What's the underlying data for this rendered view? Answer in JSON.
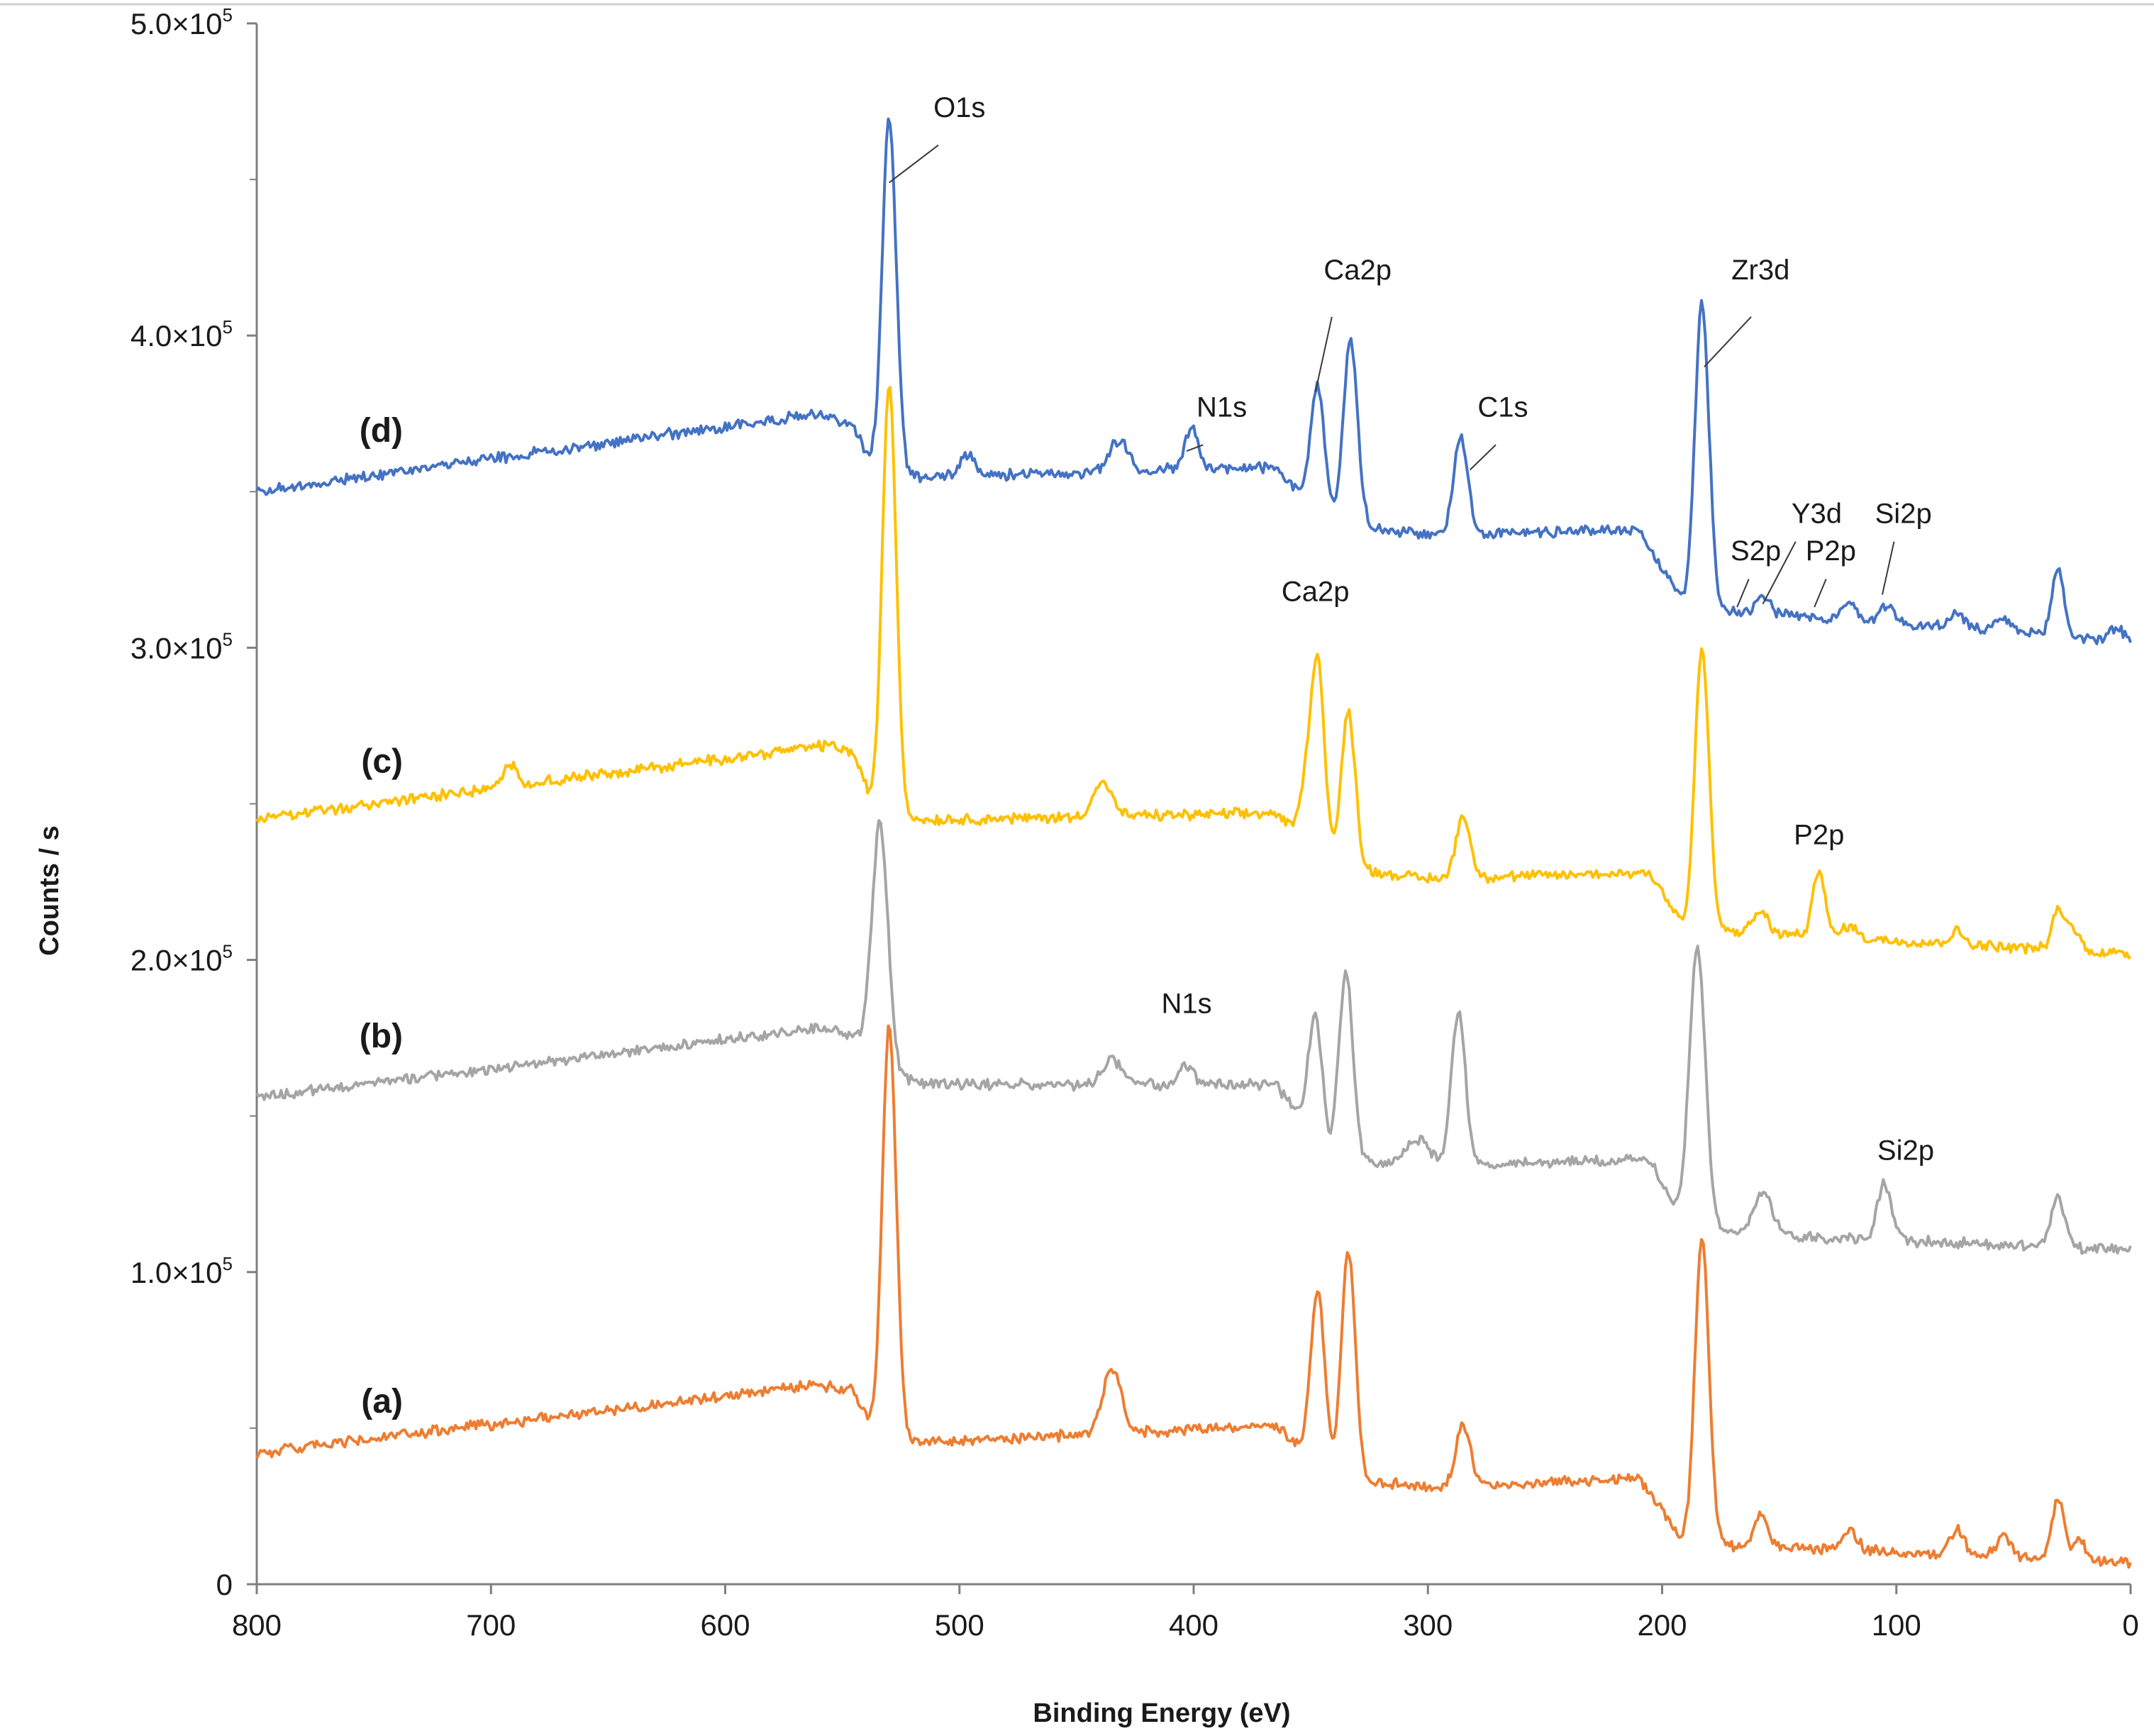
{
  "chart_data": {
    "type": "line",
    "title": "",
    "xlabel": "Binding Energy (eV)",
    "ylabel": "Counts / s",
    "xlim": [
      800,
      0
    ],
    "ylim": [
      0,
      500000
    ],
    "x_ticks": [
      800,
      700,
      600,
      500,
      400,
      300,
      200,
      100,
      0
    ],
    "x_tick_labels": [
      "800",
      "700",
      "600",
      "500",
      "400",
      "300",
      "200",
      "100",
      "0"
    ],
    "y_tick_labels": [
      {
        "mantissa": "0",
        "exp": "",
        "value": 0
      },
      {
        "mantissa": "1.0×10",
        "exp": "5",
        "value": 100000
      },
      {
        "mantissa": "2.0×10",
        "exp": "5",
        "value": 200000
      },
      {
        "mantissa": "3.0×10",
        "exp": "5",
        "value": 300000
      },
      {
        "mantissa": "4.0×10",
        "exp": "5",
        "value": 400000
      },
      {
        "mantissa": "5.0×10",
        "exp": "5",
        "value": 500000
      }
    ],
    "grid": false,
    "series": [
      {
        "name": "(a)",
        "color": "#ED7D31",
        "label_x": 780,
        "label_y": 55000,
        "baseline": [
          [
            800,
            42000
          ],
          [
            560,
            64000
          ],
          [
            545,
            62000
          ],
          [
            535,
            46000
          ],
          [
            500,
            46000
          ],
          [
            365,
            51000
          ],
          [
            340,
            34000
          ],
          [
            300,
            31000
          ],
          [
            210,
            34000
          ],
          [
            190,
            13000
          ],
          [
            0,
            7000
          ]
        ],
        "peaks": [
          [
            530,
            133000,
            3
          ],
          [
            435,
            20000,
            4
          ],
          [
            347,
            55000,
            3
          ],
          [
            334,
            73000,
            3
          ],
          [
            285,
            20000,
            3
          ],
          [
            183,
            98000,
            3
          ],
          [
            158,
            10000,
            3
          ],
          [
            120,
            7000,
            3
          ],
          [
            74,
            8000,
            3
          ],
          [
            54,
            7000,
            3
          ],
          [
            31,
            20000,
            2.5
          ],
          [
            22,
            6000,
            3
          ]
        ]
      },
      {
        "name": "(b)",
        "color": "#A5A5A5",
        "label_x": 780,
        "label_y": 172000,
        "baseline": [
          [
            800,
            156000
          ],
          [
            560,
            178000
          ],
          [
            545,
            176000
          ],
          [
            536,
            162000
          ],
          [
            500,
            160000
          ],
          [
            365,
            160000
          ],
          [
            342,
            136000
          ],
          [
            300,
            134000
          ],
          [
            205,
            136000
          ],
          [
            190,
            113000
          ],
          [
            0,
            107000
          ]
        ],
        "peaks": [
          [
            534,
            82000,
            3.5
          ],
          [
            435,
            8000,
            4
          ],
          [
            403,
            6000,
            3
          ],
          [
            348,
            40000,
            3
          ],
          [
            335,
            60000,
            3
          ],
          [
            287,
            49000,
            3
          ],
          [
            304,
            8000,
            5
          ],
          [
            185,
            92000,
            3.5
          ],
          [
            157,
            14000,
            4
          ],
          [
            105,
            18000,
            3
          ],
          [
            31,
            16000,
            3
          ]
        ]
      },
      {
        "name": "(c)",
        "color": "#FFC000",
        "label_x": 780,
        "label_y": 260000,
        "baseline": [
          [
            800,
            245000
          ],
          [
            555,
            269000
          ],
          [
            545,
            266000
          ],
          [
            535,
            245000
          ],
          [
            500,
            245000
          ],
          [
            365,
            247000
          ],
          [
            342,
            230000
          ],
          [
            300,
            226000
          ],
          [
            205,
            228000
          ],
          [
            190,
            210000
          ],
          [
            0,
            202000
          ]
        ],
        "peaks": [
          [
            530,
            140000,
            3
          ],
          [
            692,
            7000,
            3
          ],
          [
            439,
            11000,
            4
          ],
          [
            352,
            14000,
            3
          ],
          [
            347,
            60000,
            3
          ],
          [
            334,
            50000,
            3
          ],
          [
            285,
            20000,
            3
          ],
          [
            183,
            90000,
            3
          ],
          [
            158,
            7000,
            3
          ],
          [
            133,
            22000,
            2.5
          ],
          [
            120,
            4000,
            3
          ],
          [
            74,
            4000,
            3
          ],
          [
            31,
            12000,
            2.5
          ],
          [
            25,
            7000,
            3
          ]
        ]
      },
      {
        "name": "(d)",
        "color": "#4472C4",
        "label_x": 780,
        "label_y": 366000,
        "baseline": [
          [
            800,
            350000
          ],
          [
            560,
            375000
          ],
          [
            545,
            371000
          ],
          [
            535,
            355000
          ],
          [
            500,
            355000
          ],
          [
            365,
            358000
          ],
          [
            345,
            340000
          ],
          [
            300,
            336000
          ],
          [
            210,
            338000
          ],
          [
            190,
            313000
          ],
          [
            0,
            302000
          ]
        ],
        "peaks": [
          [
            530,
            115000,
            3
          ],
          [
            497,
            7000,
            3
          ],
          [
            432,
            10000,
            4
          ],
          [
            401,
            13000,
            3
          ],
          [
            347,
            42000,
            3
          ],
          [
            333,
            60000,
            3
          ],
          [
            286,
            32000,
            3
          ],
          [
            183,
            98000,
            3
          ],
          [
            157,
            6000,
            3
          ],
          [
            120,
            5000,
            3
          ],
          [
            104,
            6000,
            3
          ],
          [
            74,
            5000,
            3
          ],
          [
            54,
            4000,
            3
          ],
          [
            31,
            22000,
            2.5
          ],
          [
            6,
            4000,
            3
          ]
        ]
      }
    ],
    "annotations": [
      {
        "text": "O1s",
        "x": 500,
        "y": 470000,
        "line": [
          [
            509,
            461000
          ],
          [
            530,
            449000
          ]
        ]
      },
      {
        "text": "Ca2p",
        "x": 330,
        "y": 418000,
        "line": [
          [
            341,
            406000
          ],
          [
            348,
            382000
          ]
        ]
      },
      {
        "text": "N1s",
        "x": 388,
        "y": 374000,
        "line": [
          [
            396,
            365000
          ],
          [
            403,
            363000
          ]
        ]
      },
      {
        "text": "C1s",
        "x": 268,
        "y": 374000,
        "line": [
          [
            271,
            365000
          ],
          [
            282,
            357000
          ]
        ]
      },
      {
        "text": "Zr3d",
        "x": 158,
        "y": 418000,
        "line": [
          [
            162,
            406000
          ],
          [
            182,
            390000
          ]
        ]
      },
      {
        "text": "S2p",
        "x": 160,
        "y": 328000,
        "line": [
          [
            163,
            322000
          ],
          [
            168,
            313000
          ]
        ]
      },
      {
        "text": "Y3d",
        "x": 134,
        "y": 340000,
        "line": [
          [
            143,
            334000
          ],
          [
            157,
            314000
          ]
        ]
      },
      {
        "text": "P2p",
        "x": 128,
        "y": 328000,
        "line": [
          [
            130,
            322000
          ],
          [
            135,
            313000
          ]
        ]
      },
      {
        "text": "Si2p",
        "x": 97,
        "y": 340000,
        "line": [
          [
            101,
            334000
          ],
          [
            106,
            317000
          ]
        ]
      },
      {
        "text": "Ca2p",
        "x": 348,
        "y": 315000
      },
      {
        "text": "P2p",
        "x": 133,
        "y": 237000
      },
      {
        "text": "N1s",
        "x": 403,
        "y": 183000
      },
      {
        "text": "Si2p",
        "x": 96,
        "y": 136000
      }
    ]
  }
}
